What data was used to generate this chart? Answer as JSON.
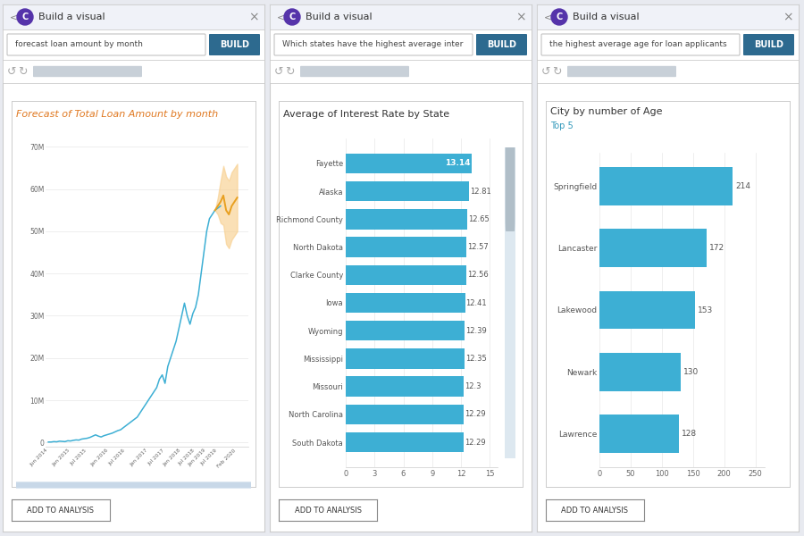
{
  "bg_color": "#e8eaf0",
  "panel_bg": "#ffffff",
  "panel_border": "#cccccc",
  "header_bg": "#f0f2f8",
  "header_text": "#333333",
  "build_btn_color": "#2d6a8f",
  "title1_color": "#e07820",
  "title2_color": "#333333",
  "title3_color": "#333333",
  "subtitle3_color": "#3399bb",
  "bar_color": "#3dafd4",
  "line_color": "#3dafd4",
  "forecast_line_color": "#e8a020",
  "forecast_fill_color": "#f8d090",
  "icon_color": "#5533aa",
  "icon_inner": "#7755cc",
  "title1": "Forecast of Total Loan Amount by month",
  "title2": "Average of Interest Rate by State",
  "title3": "City by number of Age",
  "subtitle3": "Top 5",
  "query1": "forecast loan amount by month",
  "query2": "Which states have the highest average inter",
  "query3": "the highest average age for loan applicants",
  "panel_header": "Build a visual",
  "add_btn_text": "ADD TO ANALYSIS",
  "states": [
    "Fayette",
    "Alaska",
    "Richmond County",
    "North Dakota",
    "Clarke County",
    "Iowa",
    "Wyoming",
    "Mississippi",
    "Missouri",
    "North Carolina",
    "South Dakota"
  ],
  "state_values": [
    13.14,
    12.81,
    12.65,
    12.57,
    12.56,
    12.41,
    12.39,
    12.35,
    12.3,
    12.29,
    12.29
  ],
  "cities": [
    "Springfield",
    "Lancaster",
    "Lakewood",
    "Newark",
    "Lawrence"
  ],
  "city_values": [
    214,
    172,
    153,
    130,
    128
  ],
  "loan_x": [
    0,
    1,
    2,
    3,
    4,
    5,
    6,
    7,
    8,
    9,
    10,
    11,
    12,
    13,
    14,
    15,
    16,
    17,
    18,
    19,
    20,
    21,
    22,
    23,
    24,
    25,
    26,
    27,
    28,
    29,
    30,
    31,
    32,
    33,
    34,
    35,
    36,
    37,
    38,
    39,
    40,
    41,
    42,
    43,
    44,
    45,
    46,
    47,
    48,
    49,
    50,
    51,
    52,
    53,
    54,
    55,
    56,
    57,
    58,
    59,
    60,
    61,
    62
  ],
  "loan_y": [
    0.1,
    0.1,
    0.2,
    0.15,
    0.3,
    0.25,
    0.2,
    0.4,
    0.35,
    0.5,
    0.6,
    0.55,
    0.8,
    0.9,
    1.0,
    1.2,
    1.5,
    1.8,
    1.5,
    1.3,
    1.6,
    1.8,
    2.0,
    2.2,
    2.5,
    2.8,
    3.0,
    3.5,
    4.0,
    4.5,
    5.0,
    5.5,
    6.0,
    7.0,
    8.0,
    9.0,
    10.0,
    11.0,
    12.0,
    13.0,
    15.0,
    16.0,
    14.0,
    18.0,
    20.0,
    22.0,
    24.0,
    27.0,
    30.0,
    33.0,
    30.0,
    28.0,
    30.5,
    32.0,
    35.0,
    40.0,
    45.0,
    50.0,
    53.0,
    54.0,
    55.0,
    55.5,
    56.0
  ],
  "forecast_x": [
    60,
    61,
    62,
    63,
    64,
    65,
    66,
    67,
    68
  ],
  "forecast_y": [
    55.0,
    56.0,
    57.0,
    58.5,
    55.0,
    54.0,
    56.0,
    57.0,
    58.0
  ],
  "forecast_upper": [
    55.0,
    58.0,
    62.0,
    65.5,
    63.0,
    62.0,
    64.0,
    65.0,
    66.0
  ],
  "forecast_lower": [
    55.0,
    54.0,
    52.0,
    51.5,
    47.0,
    46.0,
    48.0,
    49.0,
    50.0
  ],
  "yticks1": [
    0,
    10,
    20,
    30,
    40,
    50,
    60,
    70
  ],
  "ytick1_labels": [
    "0",
    "10M",
    "20M",
    "30M",
    "40M",
    "50M",
    "60M",
    "70M"
  ],
  "xtick2": [
    0,
    3,
    6,
    9,
    12,
    15
  ],
  "xtick3": [
    0,
    50,
    100,
    150,
    200,
    250
  ],
  "x_date_labels": [
    "Jun 2014",
    "Jan 2015",
    "Jul 2015",
    "Jan 2016",
    "Jul 2016",
    "Jan 2017",
    "Jul 2017",
    "Jan 2018",
    "Jul 2018",
    "Jan 2019",
    "Jul 2019",
    "Feb 2020"
  ],
  "x_date_pos": [
    0,
    8,
    14,
    22,
    28,
    36,
    42,
    48,
    53,
    57,
    61,
    68
  ]
}
